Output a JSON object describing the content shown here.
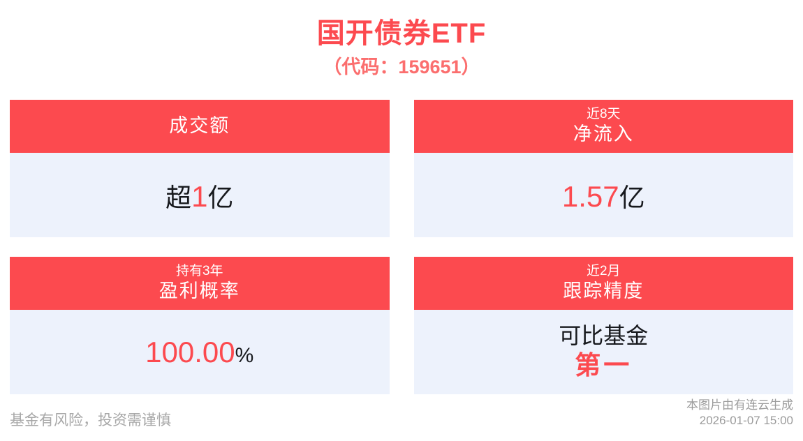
{
  "colors": {
    "accent_red": "#fc4a4f",
    "subtitle_red": "#fb6e6e",
    "card_bg": "#edf2fc",
    "text_dark": "#17191d",
    "footer_gray": "#a8a8a8",
    "credit_gray": "#9b9b9b"
  },
  "header": {
    "title": "国开债券ETF",
    "code": "（代码：159651）"
  },
  "cards": [
    {
      "period": "",
      "metric": "成交额",
      "value": {
        "pre": "超",
        "num": "1",
        "unit": "亿"
      }
    },
    {
      "period": "近8天",
      "metric": "净流入",
      "value": {
        "pre": "",
        "num": "1.57",
        "unit": "亿"
      }
    },
    {
      "period": "持有3年",
      "metric": "盈利概率",
      "value": {
        "pre": "",
        "num": "100.00",
        "unit": "%"
      }
    },
    {
      "period": "近2月",
      "metric": "跟踪精度",
      "value": {
        "line1": "可比基金",
        "line2": "第一"
      }
    }
  ],
  "footer": {
    "disclaimer": "基金有风险，投资需谨慎",
    "credit": "本图片由有连云生成",
    "generated_at": "2026-01-07 15:00"
  },
  "chart_data": {
    "type": "table",
    "title": "国开债券ETF（代码：159651）",
    "columns": [
      "period",
      "metric",
      "value"
    ],
    "rows": [
      {
        "period": "",
        "metric": "成交额",
        "value": "超1亿"
      },
      {
        "period": "近8天",
        "metric": "净流入",
        "value": "1.57亿"
      },
      {
        "period": "持有3年",
        "metric": "盈利概率",
        "value": "100.00%"
      },
      {
        "period": "近2月",
        "metric": "跟踪精度",
        "value": "可比基金 第一"
      }
    ]
  }
}
